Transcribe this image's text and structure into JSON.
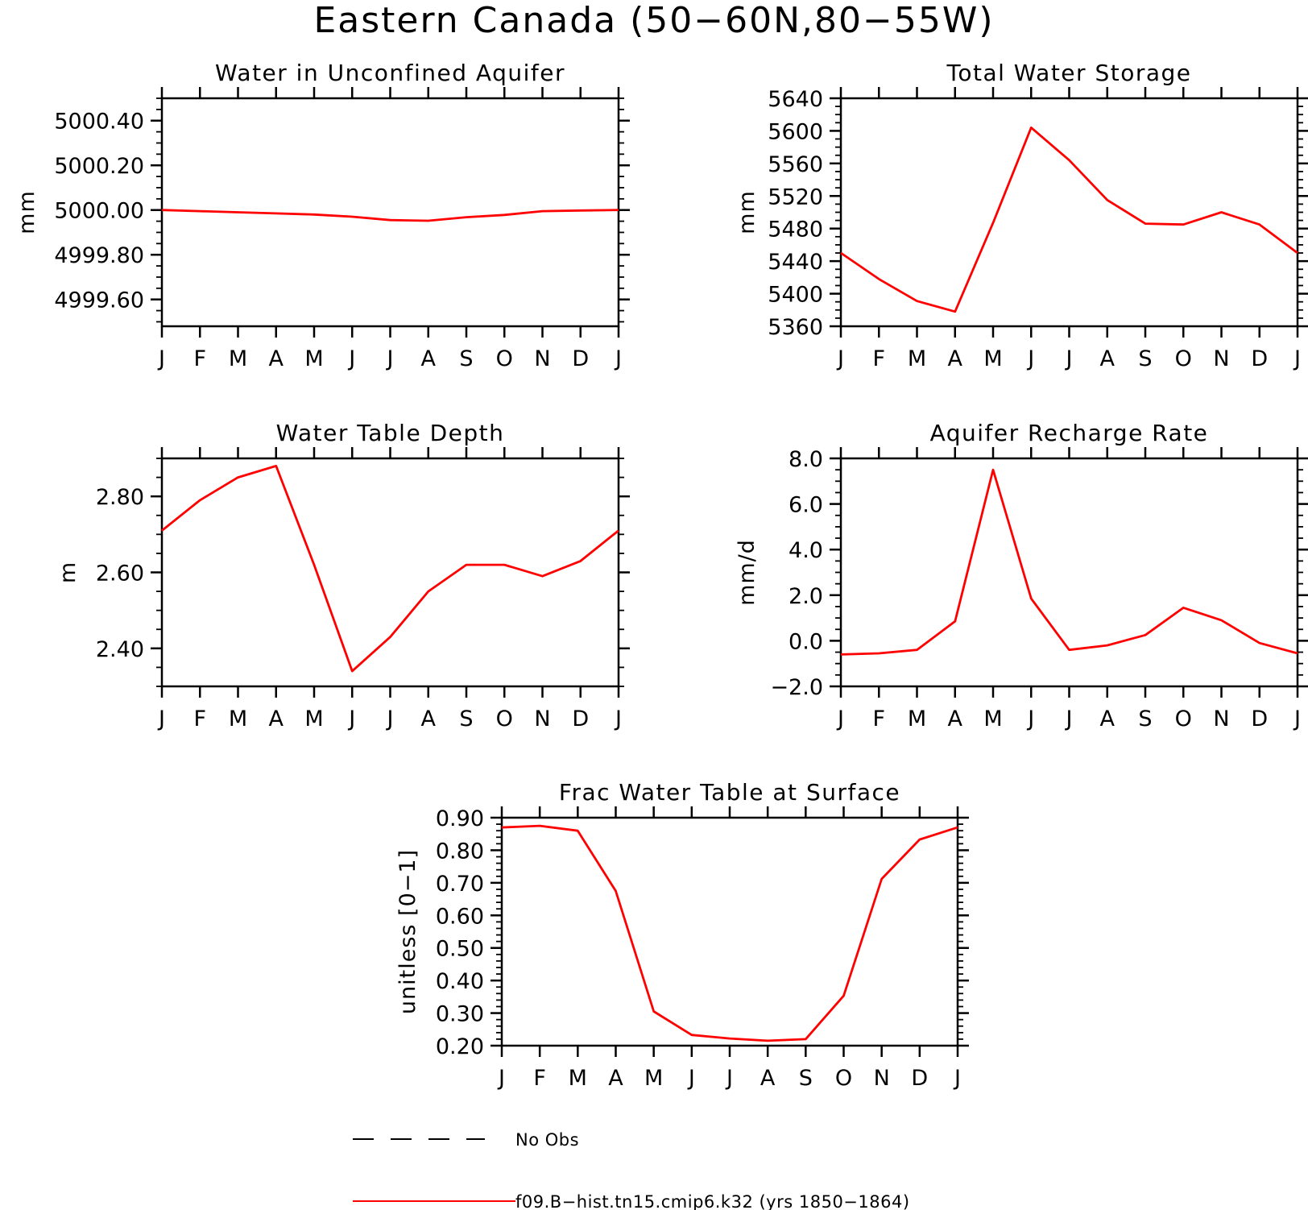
{
  "page_title": "Eastern Canada (50−60N,80−55W)",
  "colors": {
    "model_line": "#ff0000",
    "obs_line": "#000000",
    "axes": "#000000"
  },
  "legend": {
    "obs_label": "No Obs",
    "model_label": "f09.B−hist.tn15.cmip6.k32 (yrs 1850−1864)"
  },
  "chart_data": [
    {
      "type": "line",
      "title": "Water in Unconfined Aquifer",
      "xlabel": "",
      "ylabel": "mm",
      "categories": [
        "J",
        "F",
        "M",
        "A",
        "M",
        "J",
        "J",
        "A",
        "S",
        "O",
        "N",
        "D",
        "J"
      ],
      "ylim": [
        4999.48,
        5000.5
      ],
      "yticks": [
        4999.6,
        4999.8,
        5000.0,
        5000.2,
        5000.4
      ],
      "ytick_labels": [
        "4999.60",
        "4999.80",
        "5000.00",
        "5000.20",
        "5000.40"
      ],
      "minor_step": 0.05,
      "grid": false,
      "series": [
        {
          "values": [
            5000.0,
            4999.995,
            4999.99,
            4999.985,
            4999.98,
            4999.97,
            4999.955,
            4999.952,
            4999.968,
            4999.978,
            4999.995,
            4999.998,
            5000.0
          ]
        }
      ]
    },
    {
      "type": "line",
      "title": "Total Water Storage",
      "xlabel": "",
      "ylabel": "mm",
      "categories": [
        "J",
        "F",
        "M",
        "A",
        "M",
        "J",
        "J",
        "A",
        "S",
        "O",
        "N",
        "D",
        "J"
      ],
      "ylim": [
        5360,
        5640
      ],
      "yticks": [
        5360,
        5400,
        5440,
        5480,
        5520,
        5560,
        5600,
        5640
      ],
      "ytick_labels": [
        "5360",
        "5400",
        "5440",
        "5480",
        "5520",
        "5560",
        "5600",
        "5640"
      ],
      "minor_step": 10,
      "grid": false,
      "series": [
        {
          "values": [
            5450,
            5418,
            5391,
            5378,
            5487,
            5604,
            5564,
            5515,
            5486,
            5485,
            5500,
            5485,
            5450
          ]
        }
      ]
    },
    {
      "type": "line",
      "title": "Water Table Depth",
      "xlabel": "",
      "ylabel": "m",
      "categories": [
        "J",
        "F",
        "M",
        "A",
        "M",
        "J",
        "J",
        "A",
        "S",
        "O",
        "N",
        "D",
        "J"
      ],
      "ylim": [
        2.3,
        2.9
      ],
      "yticks": [
        2.4,
        2.6,
        2.8
      ],
      "ytick_labels": [
        "2.40",
        "2.60",
        "2.80"
      ],
      "minor_step": 0.05,
      "grid": false,
      "series": [
        {
          "values": [
            2.71,
            2.79,
            2.85,
            2.88,
            2.62,
            2.34,
            2.43,
            2.55,
            2.62,
            2.62,
            2.59,
            2.63,
            2.71
          ]
        }
      ]
    },
    {
      "type": "line",
      "title": "Aquifer Recharge Rate",
      "xlabel": "",
      "ylabel": "mm/d",
      "categories": [
        "J",
        "F",
        "M",
        "A",
        "M",
        "J",
        "J",
        "A",
        "S",
        "O",
        "N",
        "D",
        "J"
      ],
      "ylim": [
        -2.0,
        8.0
      ],
      "yticks": [
        -2.0,
        0.0,
        2.0,
        4.0,
        6.0,
        8.0
      ],
      "ytick_labels": [
        "−2.0",
        "0.0",
        "2.0",
        "4.0",
        "6.0",
        "8.0"
      ],
      "minor_step": 0.5,
      "grid": false,
      "series": [
        {
          "values": [
            -0.6,
            -0.55,
            -0.4,
            0.85,
            7.5,
            1.85,
            -0.4,
            -0.2,
            0.25,
            1.45,
            0.9,
            -0.1,
            -0.55
          ]
        }
      ]
    },
    {
      "type": "line",
      "title": "Frac Water Table at Surface",
      "xlabel": "",
      "ylabel": "unitless [0−1]",
      "categories": [
        "J",
        "F",
        "M",
        "A",
        "M",
        "J",
        "J",
        "A",
        "S",
        "O",
        "N",
        "D",
        "J"
      ],
      "ylim": [
        0.2,
        0.9
      ],
      "yticks": [
        0.2,
        0.3,
        0.4,
        0.5,
        0.6,
        0.7,
        0.8,
        0.9
      ],
      "ytick_labels": [
        "0.20",
        "0.30",
        "0.40",
        "0.50",
        "0.60",
        "0.70",
        "0.80",
        "0.90"
      ],
      "minor_step": 0.02,
      "grid": false,
      "series": [
        {
          "values": [
            0.87,
            0.875,
            0.86,
            0.675,
            0.305,
            0.233,
            0.222,
            0.215,
            0.22,
            0.353,
            0.712,
            0.833,
            0.87
          ]
        }
      ]
    }
  ]
}
